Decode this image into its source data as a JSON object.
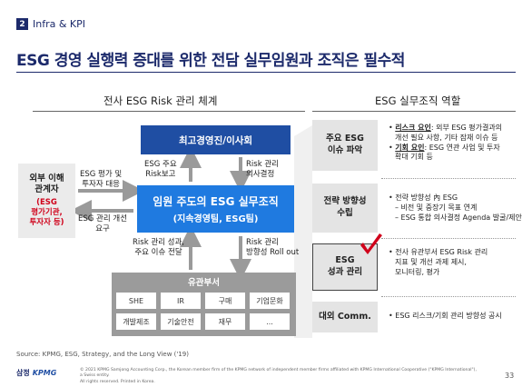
{
  "section": {
    "number": "2",
    "label": "Infra & KPI"
  },
  "headline": "ESG 경영 실행력 증대를 위한 전담 실무임원과 조직은 필수적",
  "left_title": "전사 ESG Risk 관리 체계",
  "right_title": "ESG 실무조직 역할",
  "board": "최고경영진/이사회",
  "center": {
    "line1": "임원 주도의 ESG 실무조직",
    "line2": "(지속경영팀, ESG팀)"
  },
  "stakeholder": {
    "title_1": "외부 이해",
    "title_2": "관계자",
    "red_1": "(ESG",
    "red_2": "평가기관,",
    "red_3": "투자자 등)"
  },
  "arrows": {
    "report_1": "ESG 주요",
    "report_2": "Risk보고",
    "decision_1": "Risk 관리",
    "decision_2": "의사결정",
    "eval_1": "ESG 평가 및",
    "eval_2": "투자자 대응",
    "improve_1": "ESG 관리 개선",
    "improve_2": "요구",
    "result_1": "Risk 관리 성과,",
    "result_2": "주요 이슈 전달",
    "rollout_1": "Risk 관리",
    "rollout_2": "방향성 Roll out"
  },
  "departments": {
    "title": "유관부서",
    "row1": [
      "SHE",
      "IR",
      "구매",
      "기업문화"
    ],
    "row2": [
      "개발제조",
      "기술안전",
      "재무",
      "..."
    ]
  },
  "roles": {
    "row1": {
      "label_1": "주요 ESG",
      "label_2": "이슈 파악",
      "b1_key": "리스크 요인",
      "b1_text": ": 외부 ESG 평가결과의",
      "b1_cont": "개선 필요 사항, 기타 잠재 이슈 등",
      "b2_key": "기회 요인",
      "b2_text": ": ESG 연관 사업 및 투자",
      "b2_cont": "확대 기회 등"
    },
    "row2": {
      "label_1": "전략 방향성",
      "label_2": "수립",
      "b1": "• 전략 방향성 內 ESG",
      "d1": "– 비전 및 중장기 목표 연계",
      "d2": "– ESG 통합 의사결정 Agenda 발굴/제안"
    },
    "row3": {
      "label_1": "ESG",
      "label_2": "성과 관리",
      "b1": "• 전사 유관부서 ESG Risk 관리",
      "c1": "지표 및 개선 과제 제시,",
      "c2": "모니터링, 평가"
    },
    "row4": {
      "label": "대외 Comm.",
      "b1": "• ESG 리스크/기회 관리 방향성 공시"
    }
  },
  "source": "Source: KPMG, ESG, Strategy, and the Long View ('19)",
  "footer": {
    "logo_kr": "삼정",
    "logo_en": "KPMG",
    "legal_1": "© 2021 KPMG Samjong Accounting Corp., the Korean member firm of the KPMG network of independent member firms affiliated with KPMG International Cooperative (\"KPMG International\"), a Swiss entity.",
    "legal_2": "All rights reserved. Printed in Korea.",
    "page": "33"
  },
  "colors": {
    "navy": "#1c2a6b",
    "board_blue": "#1f4ea3",
    "center_blue": "#1f7ae0",
    "accent_red": "#d0021b"
  }
}
